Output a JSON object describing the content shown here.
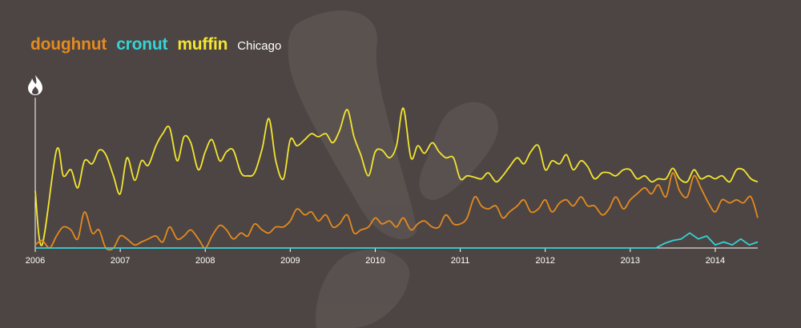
{
  "legend": {
    "series": [
      {
        "label": "doughnut",
        "color": "#e58a1f"
      },
      {
        "label": "cronut",
        "color": "#35d3d8"
      },
      {
        "label": "muffin",
        "color": "#f3e530"
      }
    ],
    "location": "Chicago"
  },
  "icons": {
    "axis_top": "flame-icon",
    "background": "yelp-burst-watermark"
  },
  "chart_data": {
    "type": "line",
    "xlabel": "",
    "ylabel": "",
    "xlim": [
      2006,
      2014.5
    ],
    "ylim": [
      0,
      100
    ],
    "grid": false,
    "legend_position": "top-left",
    "x_ticks": [
      "2006",
      "2007",
      "2008",
      "2009",
      "2010",
      "2011",
      "2012",
      "2013",
      "2014"
    ],
    "series": [
      {
        "name": "muffin",
        "color": "#f3e530",
        "x": [
          2006.0,
          2006.08,
          2006.25,
          2006.33,
          2006.42,
          2006.5,
          2006.58,
          2006.67,
          2006.75,
          2006.83,
          2006.92,
          2007.0,
          2007.08,
          2007.17,
          2007.25,
          2007.33,
          2007.42,
          2007.5,
          2007.58,
          2007.67,
          2007.75,
          2007.83,
          2007.92,
          2008.0,
          2008.08,
          2008.17,
          2008.25,
          2008.33,
          2008.42,
          2008.5,
          2008.58,
          2008.67,
          2008.75,
          2008.83,
          2008.92,
          2009.0,
          2009.08,
          2009.17,
          2009.25,
          2009.33,
          2009.42,
          2009.5,
          2009.58,
          2009.67,
          2009.75,
          2009.83,
          2009.92,
          2010.0,
          2010.08,
          2010.17,
          2010.25,
          2010.33,
          2010.42,
          2010.5,
          2010.58,
          2010.67,
          2010.75,
          2010.83,
          2010.92,
          2011.0,
          2011.08,
          2011.17,
          2011.25,
          2011.33,
          2011.42,
          2011.5,
          2011.58,
          2011.67,
          2011.75,
          2011.83,
          2011.92,
          2012.0,
          2012.08,
          2012.17,
          2012.25,
          2012.33,
          2012.42,
          2012.5,
          2012.58,
          2012.67,
          2012.75,
          2012.83,
          2012.92,
          2013.0,
          2013.08,
          2013.17,
          2013.25,
          2013.33,
          2013.42,
          2013.5,
          2013.58,
          2013.67,
          2013.75,
          2013.83,
          2013.92,
          2014.0,
          2014.08,
          2014.17,
          2014.25,
          2014.33,
          2014.42,
          2014.5
        ],
        "y": [
          38,
          2,
          65,
          48,
          52,
          40,
          58,
          56,
          65,
          62,
          48,
          36,
          60,
          45,
          58,
          55,
          68,
          76,
          80,
          58,
          74,
          70,
          52,
          64,
          72,
          58,
          64,
          65,
          50,
          48,
          50,
          66,
          86,
          58,
          46,
          72,
          68,
          72,
          76,
          74,
          76,
          70,
          78,
          92,
          74,
          62,
          48,
          64,
          65,
          60,
          68,
          93,
          60,
          68,
          63,
          70,
          64,
          60,
          60,
          46,
          48,
          47,
          46,
          50,
          44,
          48,
          54,
          60,
          56,
          64,
          68,
          52,
          58,
          56,
          62,
          52,
          58,
          54,
          46,
          50,
          50,
          48,
          52,
          52,
          46,
          48,
          44,
          46,
          46,
          53,
          46,
          44,
          52,
          46,
          48,
          46,
          48,
          44,
          52,
          52,
          46,
          44
        ]
      },
      {
        "name": "doughnut",
        "color": "#e58a1f",
        "x": [
          2006.0,
          2006.08,
          2006.17,
          2006.25,
          2006.33,
          2006.42,
          2006.5,
          2006.58,
          2006.67,
          2006.75,
          2006.83,
          2006.92,
          2007.0,
          2007.08,
          2007.17,
          2007.25,
          2007.33,
          2007.42,
          2007.5,
          2007.58,
          2007.67,
          2007.75,
          2007.83,
          2007.92,
          2008.0,
          2008.08,
          2008.17,
          2008.25,
          2008.33,
          2008.42,
          2008.5,
          2008.58,
          2008.67,
          2008.75,
          2008.83,
          2008.92,
          2009.0,
          2009.08,
          2009.17,
          2009.25,
          2009.33,
          2009.42,
          2009.5,
          2009.58,
          2009.67,
          2009.75,
          2009.83,
          2009.92,
          2010.0,
          2010.08,
          2010.17,
          2010.25,
          2010.33,
          2010.42,
          2010.5,
          2010.58,
          2010.67,
          2010.75,
          2010.83,
          2010.92,
          2011.0,
          2011.08,
          2011.17,
          2011.25,
          2011.33,
          2011.42,
          2011.5,
          2011.58,
          2011.67,
          2011.75,
          2011.83,
          2011.92,
          2012.0,
          2012.08,
          2012.17,
          2012.25,
          2012.33,
          2012.42,
          2012.5,
          2012.58,
          2012.67,
          2012.75,
          2012.83,
          2012.92,
          2013.0,
          2013.08,
          2013.17,
          2013.25,
          2013.33,
          2013.42,
          2013.5,
          2013.58,
          2013.67,
          2013.75,
          2013.83,
          2013.92,
          2014.0,
          2014.08,
          2014.17,
          2014.25,
          2014.33,
          2014.42,
          2014.5
        ],
        "y": [
          2,
          5,
          0,
          8,
          14,
          12,
          6,
          24,
          10,
          12,
          0,
          0,
          8,
          6,
          2,
          4,
          6,
          8,
          4,
          14,
          6,
          8,
          12,
          6,
          0,
          8,
          15,
          12,
          6,
          10,
          8,
          16,
          12,
          10,
          14,
          14,
          18,
          26,
          22,
          24,
          18,
          22,
          14,
          16,
          22,
          10,
          12,
          14,
          20,
          16,
          18,
          14,
          20,
          12,
          16,
          18,
          14,
          14,
          22,
          16,
          16,
          20,
          34,
          28,
          26,
          28,
          20,
          24,
          28,
          32,
          24,
          26,
          32,
          24,
          30,
          32,
          28,
          34,
          28,
          28,
          22,
          26,
          34,
          26,
          32,
          36,
          40,
          36,
          42,
          34,
          50,
          38,
          34,
          48,
          40,
          30,
          24,
          32,
          30,
          32,
          30,
          34,
          20
        ]
      },
      {
        "name": "cronut",
        "color": "#35d3d8",
        "x": [
          2006.0,
          2013.3,
          2013.4,
          2013.5,
          2013.6,
          2013.7,
          2013.8,
          2013.9,
          2014.0,
          2014.1,
          2014.2,
          2014.3,
          2014.4,
          2014.5
        ],
        "y": [
          0,
          0,
          3,
          5,
          6,
          10,
          6,
          8,
          2,
          4,
          2,
          6,
          2,
          4
        ]
      }
    ]
  }
}
